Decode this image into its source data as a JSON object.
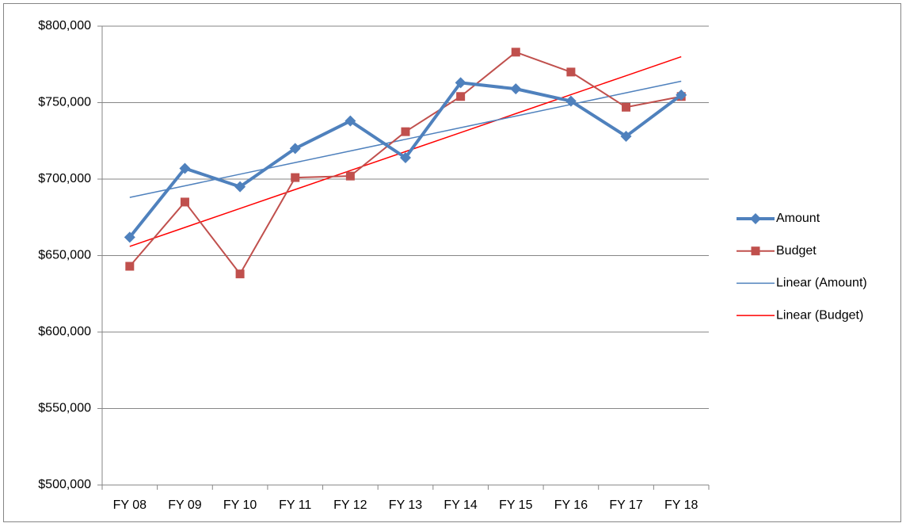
{
  "chart_data": {
    "type": "line",
    "categories": [
      "FY 08",
      "FY 09",
      "FY 10",
      "FY 11",
      "FY 12",
      "FY 13",
      "FY 14",
      "FY 15",
      "FY 16",
      "FY 17",
      "FY 18"
    ],
    "series": [
      {
        "name": "Amount",
        "color": "#4f81bd",
        "width": 4,
        "marker": "diamond",
        "values": [
          662000,
          707000,
          695000,
          720000,
          738000,
          714000,
          763000,
          759000,
          751000,
          728000,
          755000
        ]
      },
      {
        "name": "Budget",
        "color": "#c0504d",
        "width": 2,
        "marker": "square",
        "values": [
          643000,
          685000,
          638000,
          701000,
          702000,
          731000,
          754000,
          783000,
          770000,
          747000,
          754000
        ]
      },
      {
        "name": "Linear (Amount)",
        "color": "#4f81bd",
        "width": 1.5,
        "marker": "none",
        "values": [
          688000,
          695600,
          703200,
          710800,
          718400,
          726000,
          733600,
          741200,
          748800,
          756400,
          764000
        ]
      },
      {
        "name": "Linear (Budget)",
        "color": "#ff0000",
        "width": 1.5,
        "marker": "none",
        "values": [
          656000,
          668400,
          680800,
          693200,
          705600,
          718000,
          730400,
          742800,
          755200,
          767600,
          780000
        ]
      }
    ],
    "ylim": [
      500000,
      800000
    ],
    "yticks": [
      {
        "value": 500000,
        "label": "$500,000"
      },
      {
        "value": 550000,
        "label": "$550,000"
      },
      {
        "value": 600000,
        "label": "$600,000"
      },
      {
        "value": 650000,
        "label": "$650,000"
      },
      {
        "value": 700000,
        "label": "$700,000"
      },
      {
        "value": 750000,
        "label": "$750,000"
      },
      {
        "value": 800000,
        "label": "$800,000"
      }
    ],
    "grid": true,
    "legend": "right"
  }
}
